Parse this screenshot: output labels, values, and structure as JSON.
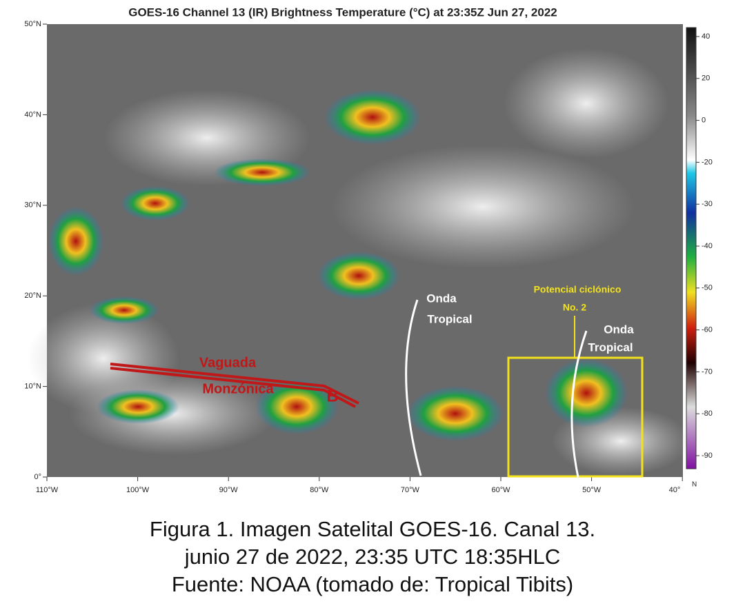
{
  "figure": {
    "title": "GOES-16 Channel 13 (IR) Brightness Temperature (°C) at 23:35Z Jun 27, 2022",
    "lat_labels": [
      "50°N",
      "40°N",
      "30°N",
      "20°N",
      "10°N",
      "0°"
    ],
    "lon_labels": [
      "110°W",
      "100°W",
      "90°W",
      "80°W",
      "70°W",
      "60°W",
      "50°W",
      "40°"
    ],
    "colorbar_ticks": [
      "40",
      "20",
      "0",
      "-20",
      "-30",
      "-40",
      "-50",
      "-60",
      "-70",
      "-80",
      "-90"
    ],
    "colorbar_end_label": "N",
    "annotations": {
      "trough": [
        "Vaguada",
        "Monzónica"
      ],
      "low": "B",
      "wave_1": [
        "Onda",
        "Tropical"
      ],
      "cyclone": [
        "Potencial ciclónico",
        "No. 2"
      ],
      "wave_2": [
        "Onda",
        "Tropical"
      ]
    },
    "caption": [
      "Figura 1. Imagen Satelital GOES-16. Canal 13.",
      "junio 27 de 2022, 23:35 UTC 18:35HLC",
      "Fuente: NOAA (tomado de: Tropical Tibits)"
    ]
  }
}
